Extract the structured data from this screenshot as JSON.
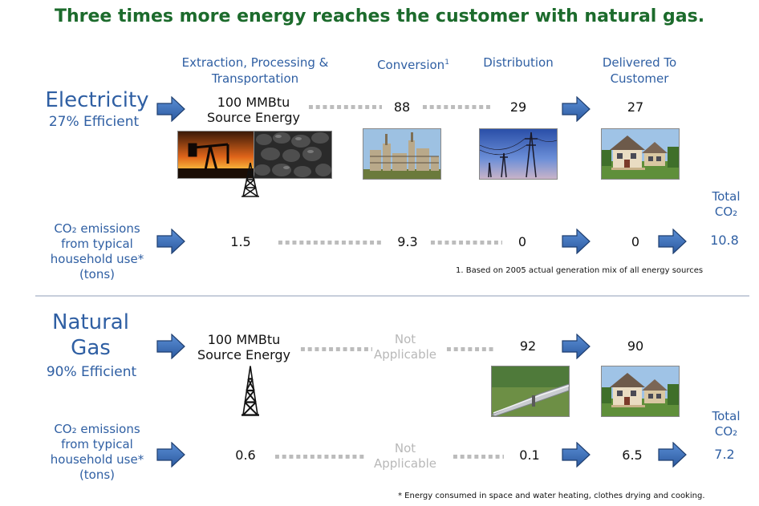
{
  "title": "Three times more energy reaches the customer with natural gas.",
  "stages": {
    "extraction": "Extraction, Processing & Transportation",
    "conversion": "Conversion",
    "conversion_note_mark": "1",
    "distribution": "Distribution",
    "delivered": "Delivered To Customer"
  },
  "electricity": {
    "name": "Electricity",
    "efficiency": "27% Efficient",
    "source_value": "100 MMBtu",
    "source_label": "Source Energy",
    "conversion": "88",
    "distribution": "29",
    "delivered": "27",
    "co2_label": "CO₂ emissions from typical household use* (tons)",
    "co2_extraction": "1.5",
    "co2_conversion": "9.3",
    "co2_distribution": "0",
    "co2_delivered": "0",
    "total_label": "Total CO₂",
    "total_value": "10.8"
  },
  "natural_gas": {
    "name_line1": "Natural",
    "name_line2": "Gas",
    "efficiency": "90% Efficient",
    "source_value": "100 MMBtu",
    "source_label": "Source Energy",
    "conversion_line1": "Not",
    "conversion_line2": "Applicable",
    "distribution": "92",
    "delivered": "90",
    "co2_label": "CO₂ emissions from typical household use* (tons)",
    "co2_extraction": "0.6",
    "co2_conversion_line1": "Not",
    "co2_conversion_line2": "Applicable",
    "co2_distribution": "0.1",
    "co2_delivered": "6.5",
    "total_label": "Total CO₂",
    "total_value": "7.2"
  },
  "footnote1": "1.   Based on 2005 actual generation mix of all energy sources",
  "footnote_star": "* Energy consumed in space and water heating, clothes drying and cooking.",
  "colors": {
    "title": "#1c6b2c",
    "label": "#2f5fa3",
    "arrow": "#3b6db3"
  },
  "icons": [
    "arrow-right-icon",
    "oil-derrick-icon",
    "oil-pump-photo",
    "coal-photo",
    "power-plant-photo",
    "power-lines-photo",
    "house-photo",
    "pipeline-photo"
  ]
}
